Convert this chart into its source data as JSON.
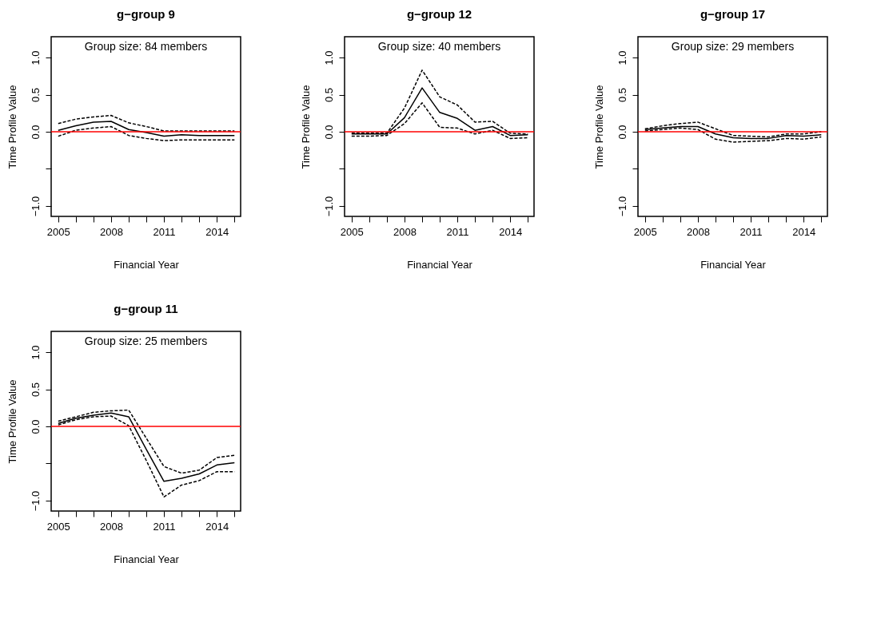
{
  "chart_data": [
    {
      "type": "line",
      "title": "g−group 9",
      "xlabel": "Financial Year",
      "ylabel": "Time Profile Value",
      "x": [
        2005,
        2006,
        2007,
        2008,
        2009,
        2010,
        2011,
        2012,
        2013,
        2014,
        2015
      ],
      "series": [
        {
          "color": "#000000",
          "line_style": "solid",
          "values": [
            0.02,
            0.08,
            0.13,
            0.14,
            0.03,
            -0.01,
            -0.06,
            -0.04,
            -0.05,
            -0.05,
            -0.05
          ]
        },
        {
          "color": "#000000",
          "line_style": "dashed",
          "values": [
            0.11,
            0.17,
            0.2,
            0.22,
            0.12,
            0.07,
            0.01,
            0.01,
            0.01,
            0.01,
            0.01
          ]
        },
        {
          "color": "#000000",
          "line_style": "dashed",
          "values": [
            -0.06,
            0.02,
            0.05,
            0.07,
            -0.05,
            -0.09,
            -0.12,
            -0.11,
            -0.11,
            -0.11,
            -0.11
          ]
        }
      ],
      "xlim": [
        2004.6,
        2015.35
      ],
      "ylim": [
        -1.14,
        1.28
      ],
      "xticks": [
        2005,
        {
          "value": 2006,
          "label": null
        },
        {
          "value": 2007,
          "label": null
        },
        2008,
        {
          "value": 2009,
          "label": null
        },
        {
          "value": 2010,
          "label": null
        },
        2011,
        {
          "value": 2012,
          "label": null
        },
        {
          "value": 2013,
          "label": null
        },
        2014,
        {
          "value": 2015,
          "label": null
        }
      ],
      "yticks": [
        {
          "value": -1,
          "label": "−1.0"
        },
        {
          "value": -0.5,
          "label": null
        },
        {
          "value": 0,
          "label": "0.0"
        },
        {
          "value": 0.5,
          "label": "0.5"
        },
        {
          "value": 1,
          "label": "1.0"
        }
      ],
      "ref_lines": [
        {
          "axis": "y",
          "value": 0,
          "color": "#ff0000"
        }
      ],
      "annotations": [
        "Group size: 84 members"
      ]
    },
    {
      "type": "line",
      "title": "g−group 12",
      "xlabel": "Financial Year",
      "ylabel": "Time Profile Value",
      "x": [
        2005,
        2006,
        2007,
        2008,
        2009,
        2010,
        2011,
        2012,
        2013,
        2014,
        2015
      ],
      "series": [
        {
          "color": "#000000",
          "line_style": "solid",
          "values": [
            -0.03,
            -0.03,
            -0.03,
            0.19,
            0.59,
            0.26,
            0.18,
            0.02,
            0.07,
            -0.05,
            -0.04
          ]
        },
        {
          "color": "#000000",
          "line_style": "dashed",
          "values": [
            -0.02,
            -0.02,
            -0.02,
            0.32,
            0.83,
            0.47,
            0.36,
            0.13,
            0.14,
            -0.02,
            -0.03
          ]
        },
        {
          "color": "#000000",
          "line_style": "dashed",
          "values": [
            -0.06,
            -0.06,
            -0.05,
            0.11,
            0.39,
            0.06,
            0.05,
            -0.03,
            0.02,
            -0.09,
            -0.08
          ]
        }
      ],
      "xlim": [
        2004.6,
        2015.35
      ],
      "ylim": [
        -1.14,
        1.28
      ],
      "xticks": [
        2005,
        {
          "value": 2006,
          "label": null
        },
        {
          "value": 2007,
          "label": null
        },
        2008,
        {
          "value": 2009,
          "label": null
        },
        {
          "value": 2010,
          "label": null
        },
        2011,
        {
          "value": 2012,
          "label": null
        },
        {
          "value": 2013,
          "label": null
        },
        2014,
        {
          "value": 2015,
          "label": null
        }
      ],
      "yticks": [
        {
          "value": -1,
          "label": "−1.0"
        },
        {
          "value": -0.5,
          "label": null
        },
        {
          "value": 0,
          "label": "0.0"
        },
        {
          "value": 0.5,
          "label": "0.5"
        },
        {
          "value": 1,
          "label": "1.0"
        }
      ],
      "ref_lines": [
        {
          "axis": "y",
          "value": 0,
          "color": "#ff0000"
        }
      ],
      "annotations": [
        "Group size: 40 members"
      ]
    },
    {
      "type": "line",
      "title": "g−group 17",
      "xlabel": "Financial Year",
      "ylabel": "Time Profile Value",
      "x": [
        2005,
        2006,
        2007,
        2008,
        2009,
        2010,
        2011,
        2012,
        2013,
        2014,
        2015
      ],
      "series": [
        {
          "color": "#000000",
          "line_style": "solid",
          "values": [
            0.03,
            0.05,
            0.07,
            0.07,
            -0.03,
            -0.08,
            -0.09,
            -0.09,
            -0.05,
            -0.06,
            -0.04
          ]
        },
        {
          "color": "#000000",
          "line_style": "dashed",
          "values": [
            0.04,
            0.08,
            0.11,
            0.13,
            0.04,
            -0.05,
            -0.06,
            -0.07,
            -0.03,
            -0.03,
            0.0
          ]
        },
        {
          "color": "#000000",
          "line_style": "dashed",
          "values": [
            0.01,
            0.03,
            0.05,
            0.03,
            -0.1,
            -0.14,
            -0.13,
            -0.12,
            -0.09,
            -0.1,
            -0.07
          ]
        }
      ],
      "xlim": [
        2004.6,
        2015.35
      ],
      "ylim": [
        -1.14,
        1.28
      ],
      "xticks": [
        2005,
        {
          "value": 2006,
          "label": null
        },
        {
          "value": 2007,
          "label": null
        },
        2008,
        {
          "value": 2009,
          "label": null
        },
        {
          "value": 2010,
          "label": null
        },
        2011,
        {
          "value": 2012,
          "label": null
        },
        {
          "value": 2013,
          "label": null
        },
        2014,
        {
          "value": 2015,
          "label": null
        }
      ],
      "yticks": [
        {
          "value": -1,
          "label": "−1.0"
        },
        {
          "value": -0.5,
          "label": null
        },
        {
          "value": 0,
          "label": "0.0"
        },
        {
          "value": 0.5,
          "label": "0.5"
        },
        {
          "value": 1,
          "label": "1.0"
        }
      ],
      "ref_lines": [
        {
          "axis": "y",
          "value": 0,
          "color": "#ff0000"
        }
      ],
      "annotations": [
        "Group size: 29 members"
      ]
    },
    {
      "type": "line",
      "title": "g−group 11",
      "xlabel": "Financial Year",
      "ylabel": "Time Profile Value",
      "x": [
        2005,
        2006,
        2007,
        2008,
        2009,
        2010,
        2011,
        2012,
        2013,
        2014,
        2015
      ],
      "series": [
        {
          "color": "#000000",
          "line_style": "solid",
          "values": [
            0.04,
            0.11,
            0.15,
            0.18,
            0.13,
            -0.31,
            -0.74,
            -0.7,
            -0.64,
            -0.52,
            -0.49
          ]
        },
        {
          "color": "#000000",
          "line_style": "dashed",
          "values": [
            0.07,
            0.13,
            0.19,
            0.21,
            0.22,
            -0.16,
            -0.54,
            -0.63,
            -0.59,
            -0.42,
            -0.39
          ]
        },
        {
          "color": "#000000",
          "line_style": "dashed",
          "values": [
            0.02,
            0.09,
            0.13,
            0.14,
            0.01,
            -0.46,
            -0.95,
            -0.79,
            -0.73,
            -0.61,
            -0.61
          ]
        }
      ],
      "xlim": [
        2004.6,
        2015.35
      ],
      "ylim": [
        -1.14,
        1.28
      ],
      "xticks": [
        2005,
        {
          "value": 2006,
          "label": null
        },
        {
          "value": 2007,
          "label": null
        },
        2008,
        {
          "value": 2009,
          "label": null
        },
        {
          "value": 2010,
          "label": null
        },
        2011,
        {
          "value": 2012,
          "label": null
        },
        {
          "value": 2013,
          "label": null
        },
        2014,
        {
          "value": 2015,
          "label": null
        }
      ],
      "yticks": [
        {
          "value": -1,
          "label": "−1.0"
        },
        {
          "value": -0.5,
          "label": null
        },
        {
          "value": 0,
          "label": "0.0"
        },
        {
          "value": 0.5,
          "label": "0.5"
        },
        {
          "value": 1,
          "label": "1.0"
        }
      ],
      "ref_lines": [
        {
          "axis": "y",
          "value": 0,
          "color": "#ff0000"
        }
      ],
      "annotations": [
        "Group size: 25 members"
      ]
    }
  ]
}
